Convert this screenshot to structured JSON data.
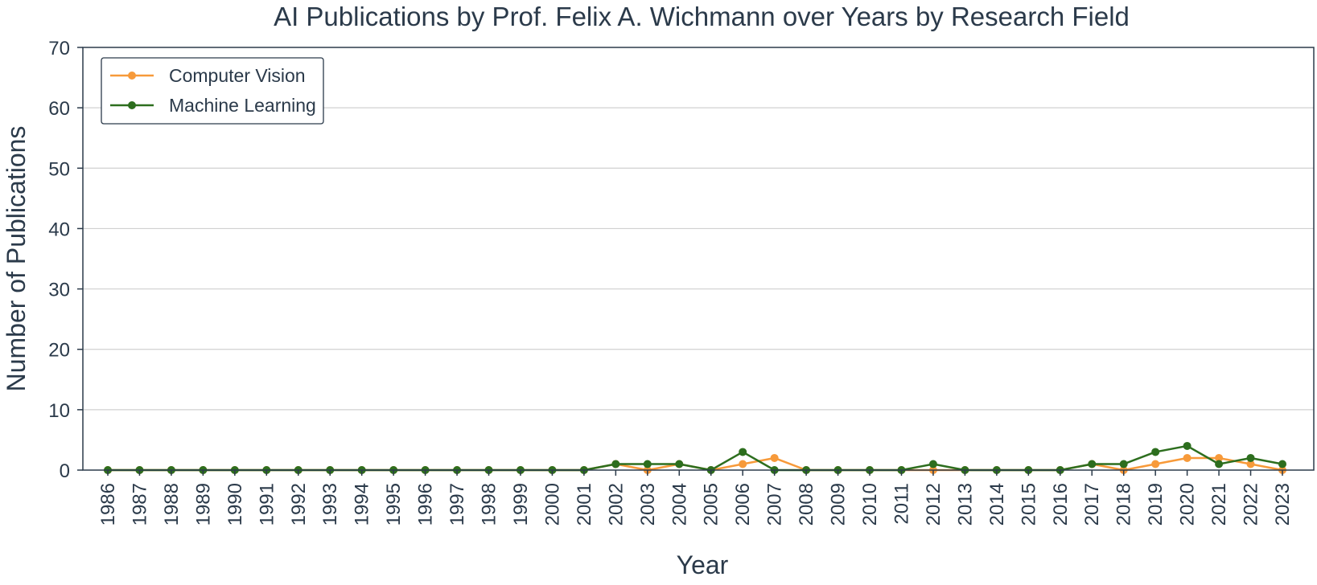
{
  "chart_data": {
    "type": "line",
    "title": "AI Publications by Prof. Felix A. Wichmann over Years by Research Field",
    "xlabel": "Year",
    "ylabel": "Number of Publications",
    "ylim": [
      0,
      70
    ],
    "yticks": [
      0,
      10,
      20,
      30,
      40,
      50,
      60,
      70
    ],
    "grid": "horizontal",
    "legend_position": "top-left",
    "x": [
      "1986",
      "1987",
      "1988",
      "1989",
      "1990",
      "1991",
      "1992",
      "1993",
      "1994",
      "1995",
      "1996",
      "1997",
      "1998",
      "1999",
      "2000",
      "2001",
      "2002",
      "2003",
      "2004",
      "2005",
      "2006",
      "2007",
      "2008",
      "2009",
      "2010",
      "2011",
      "2012",
      "2013",
      "2014",
      "2015",
      "2016",
      "2017",
      "2018",
      "2019",
      "2020",
      "2021",
      "2022",
      "2023"
    ],
    "series": [
      {
        "name": "Computer Vision",
        "color": "#f79a3a",
        "values": [
          0,
          0,
          0,
          0,
          0,
          0,
          0,
          0,
          0,
          0,
          0,
          0,
          0,
          0,
          0,
          0,
          1,
          0,
          1,
          0,
          1,
          2,
          0,
          0,
          0,
          0,
          0,
          0,
          0,
          0,
          0,
          1,
          0,
          1,
          2,
          2,
          1,
          0
        ]
      },
      {
        "name": "Machine Learning",
        "color": "#2d6e1e",
        "values": [
          0,
          0,
          0,
          0,
          0,
          0,
          0,
          0,
          0,
          0,
          0,
          0,
          0,
          0,
          0,
          0,
          1,
          1,
          1,
          0,
          3,
          0,
          0,
          0,
          0,
          0,
          1,
          0,
          0,
          0,
          0,
          1,
          1,
          3,
          4,
          1,
          2,
          1
        ]
      }
    ]
  }
}
